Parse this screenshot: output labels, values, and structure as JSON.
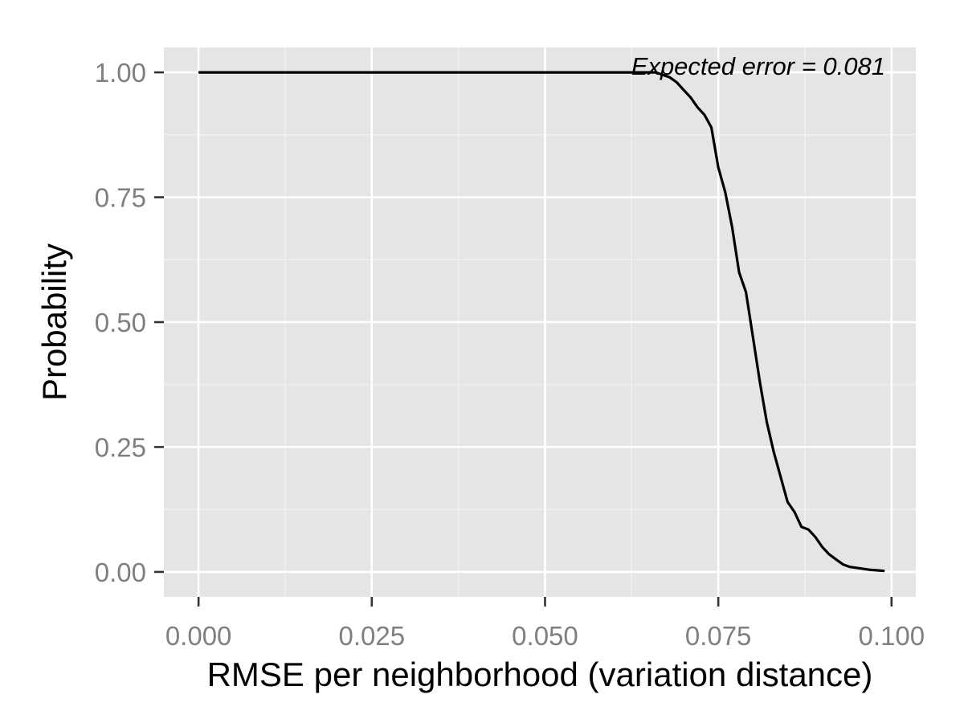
{
  "chart_data": {
    "type": "line",
    "title": "",
    "xlabel": "RMSE per neighborhood (variation distance)",
    "ylabel": "Probability",
    "xlim": [
      -0.005,
      0.1035
    ],
    "ylim": [
      -0.05,
      1.05
    ],
    "x_ticks": [
      0.0,
      0.025,
      0.05,
      0.075,
      0.1
    ],
    "x_tick_labels": [
      "0.000",
      "0.025",
      "0.050",
      "0.075",
      "0.100"
    ],
    "y_ticks": [
      0.0,
      0.25,
      0.5,
      0.75,
      1.0
    ],
    "y_tick_labels": [
      "0.00",
      "0.25",
      "0.50",
      "0.75",
      "1.00"
    ],
    "grid": true,
    "legend": "none",
    "annotation": {
      "text": "Expected error = 0.081",
      "x": 0.1,
      "y": 1.0
    },
    "series": [
      {
        "x": [
          0.0,
          0.06,
          0.066,
          0.067,
          0.068,
          0.069,
          0.07,
          0.071,
          0.072,
          0.073,
          0.074,
          0.075,
          0.076,
          0.077,
          0.078,
          0.079,
          0.08,
          0.081,
          0.082,
          0.083,
          0.084,
          0.085,
          0.086,
          0.087,
          0.088,
          0.089,
          0.09,
          0.091,
          0.092,
          0.093,
          0.094,
          0.095,
          0.096,
          0.097,
          0.098,
          0.099
        ],
        "y": [
          1.0,
          1.0,
          1.0,
          0.995,
          0.99,
          0.98,
          0.965,
          0.95,
          0.93,
          0.915,
          0.89,
          0.81,
          0.76,
          0.69,
          0.6,
          0.56,
          0.47,
          0.38,
          0.3,
          0.24,
          0.19,
          0.14,
          0.12,
          0.09,
          0.085,
          0.07,
          0.05,
          0.035,
          0.025,
          0.015,
          0.01,
          0.008,
          0.006,
          0.004,
          0.003,
          0.002
        ]
      }
    ]
  },
  "colors": {
    "panel_background": "#e5e5e5",
    "grid_major": "#ffffff",
    "grid_minor": "#f2f2f2",
    "tick_text": "#7f7f7f",
    "line": "#000000"
  }
}
